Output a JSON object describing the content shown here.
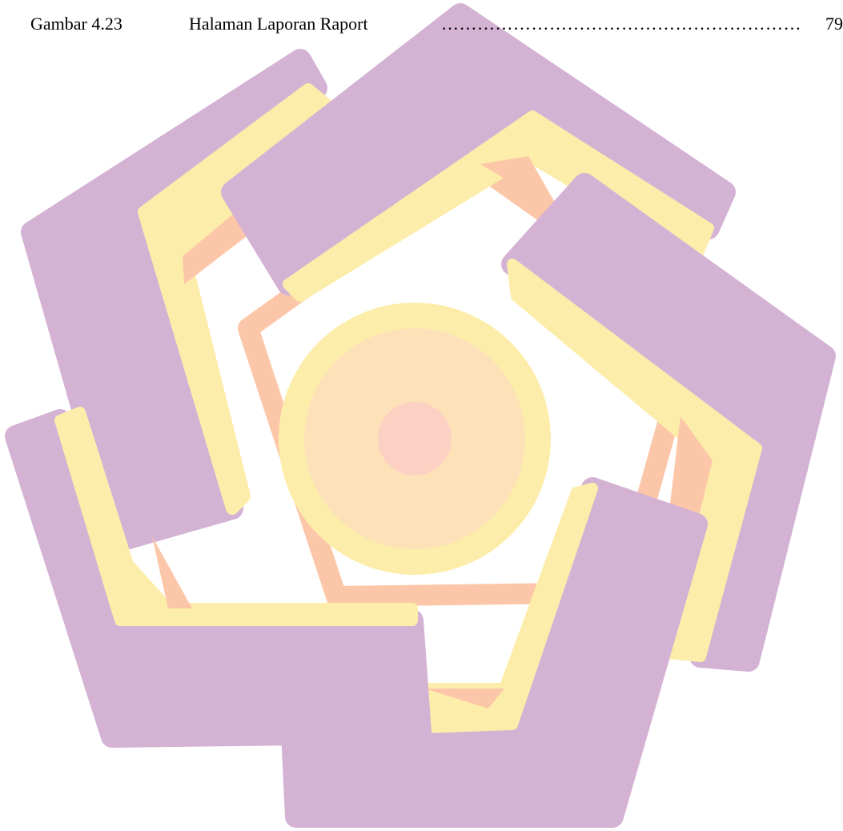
{
  "toc_entry": {
    "number": "Gambar 4.23",
    "title": "Halaman Laporan Raport",
    "leader": "……………………………………………………",
    "page": "79"
  },
  "watermark": {
    "icon": "university-logo-watermark",
    "colors": {
      "purple": "#d4b2d4",
      "purple_shadow": "#caa5cc",
      "yellow": "#fdedaa",
      "peach": "#fddcb5",
      "orange": "#fcc7a8",
      "circle_outer": "#fdedaa",
      "circle_mid": "#fde1b8",
      "circle_inner": "#fcd0c2"
    }
  }
}
